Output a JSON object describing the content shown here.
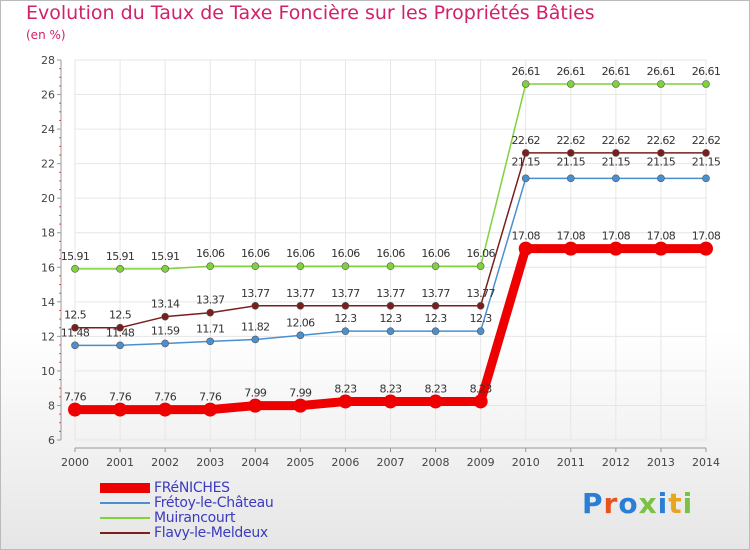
{
  "header": {
    "title": "Evolution du Taux de Taxe Foncière sur les Propriétés Bâties",
    "subtitle": "(en %)"
  },
  "brand": {
    "text": "Proxiti"
  },
  "chart_data": {
    "type": "line",
    "title": "Evolution du Taux de Taxe Foncière sur les Propriétés Bâties",
    "ylabel": "(en %)",
    "xlabel": "",
    "ylim": [
      6,
      28
    ],
    "yticks": [
      6,
      8,
      10,
      12,
      14,
      16,
      18,
      20,
      22,
      24,
      26,
      28
    ],
    "grid": true,
    "legend": "bottom-left",
    "x": [
      "2000",
      "2001",
      "2002",
      "2003",
      "2004",
      "2005",
      "2006",
      "2007",
      "2008",
      "2009",
      "2010",
      "2011",
      "2012",
      "2013",
      "2014"
    ],
    "series": [
      {
        "name": "FRéNICHES",
        "color": "#ee0000",
        "values": [
          7.76,
          7.76,
          7.76,
          7.76,
          7.99,
          7.99,
          8.23,
          8.23,
          8.23,
          8.23,
          17.08,
          17.08,
          17.08,
          17.08,
          17.08
        ],
        "labels": [
          "7.76",
          "7.76",
          "7.76",
          "7.76",
          "7.99",
          "7.99",
          "8.23",
          "8.23",
          "8.23",
          "8.23",
          "17.08",
          "17.08",
          "17.08",
          "17.08",
          "17.08"
        ]
      },
      {
        "name": "Frétoy-le-Château",
        "color": "#4a8fd0",
        "values": [
          11.48,
          11.48,
          11.59,
          11.71,
          11.82,
          12.06,
          12.3,
          12.3,
          12.3,
          12.3,
          21.15,
          21.15,
          21.15,
          21.15,
          21.15
        ],
        "labels": [
          "11.48",
          "11.48",
          "11.59",
          "11.71",
          "11.82",
          "12.06",
          "12.3",
          "12.3",
          "12.3",
          "12.3",
          "21.15",
          "21.15",
          "21.15",
          "21.15",
          "21.15"
        ]
      },
      {
        "name": "Muirancourt",
        "color": "#7fd23c",
        "values": [
          15.91,
          15.91,
          15.91,
          16.06,
          16.06,
          16.06,
          16.06,
          16.06,
          16.06,
          16.06,
          26.61,
          26.61,
          26.61,
          26.61,
          26.61
        ],
        "labels": [
          "15.91",
          "15.91",
          "15.91",
          "16.06",
          "16.06",
          "16.06",
          "16.06",
          "16.06",
          "16.06",
          "16.06",
          "26.61",
          "26.61",
          "26.61",
          "26.61",
          "26.61"
        ]
      },
      {
        "name": "Flavy-le-Meldeux",
        "color": "#7a1e1e",
        "values": [
          12.5,
          12.5,
          13.14,
          13.37,
          13.77,
          13.77,
          13.77,
          13.77,
          13.77,
          13.77,
          22.62,
          22.62,
          22.62,
          22.62,
          22.62
        ],
        "labels": [
          "12.5",
          "12.5",
          "13.14",
          "13.37",
          "13.77",
          "13.77",
          "13.77",
          "13.77",
          "13.77",
          "13.77",
          "22.62",
          "22.62",
          "22.62",
          "22.62",
          "22.62"
        ]
      }
    ]
  }
}
